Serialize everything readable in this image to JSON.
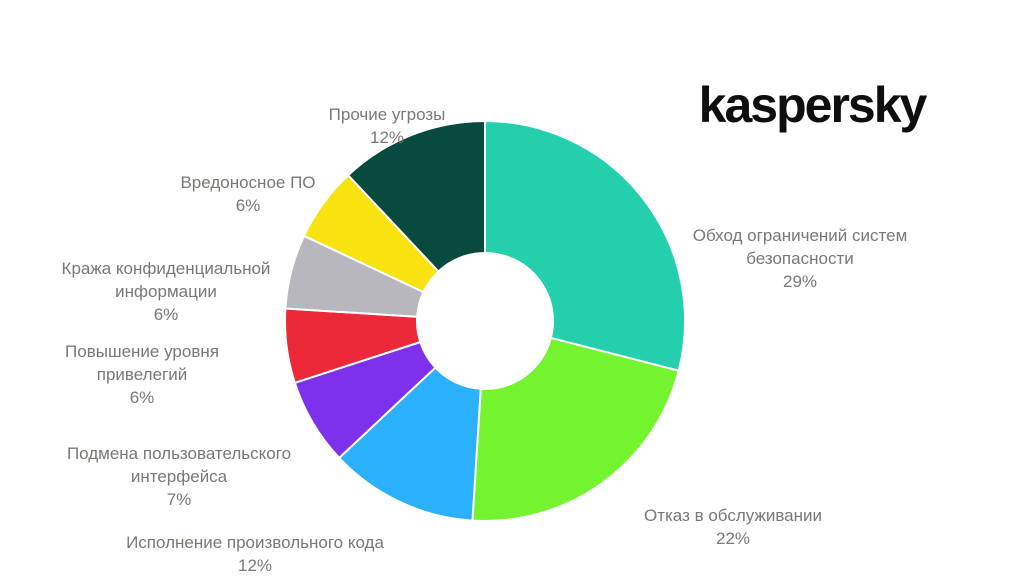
{
  "header": {
    "logo_text": "kaspersky"
  },
  "colors": {
    "background": "#ffffff",
    "label_text": "#7a7873",
    "logo": "#0e0e0e",
    "slice_gap": "#ffffff"
  },
  "chart_data": {
    "type": "pie",
    "style": "donut",
    "title": "",
    "legend_position": "none",
    "labels_outside": true,
    "start_angle_deg": 0,
    "direction": "clockwise",
    "inner_radius_ratio": 0.34,
    "unit": "%",
    "slices": [
      {
        "label": "Обход ограничений систем безопасности",
        "label_lines": "Обход ограничений систем\nбезопасности",
        "pct": "29%",
        "value": 29,
        "color": "#24CFAD"
      },
      {
        "label": "Отказ в обслуживании",
        "label_lines": "Отказ в обслуживании",
        "pct": "22%",
        "value": 22,
        "color": "#74F42F"
      },
      {
        "label": "Исполнение произвольного кода",
        "label_lines": "Исполнение произвольного кода",
        "pct": "12%",
        "value": 12,
        "color": "#2BB0FB"
      },
      {
        "label": "Подмена пользовательского интерфейса",
        "label_lines": "Подмена пользовательского\nинтерфейса",
        "pct": "7%",
        "value": 7,
        "color": "#7E31EC"
      },
      {
        "label": "Повышение уровня привелегий",
        "label_lines": "Повышение уровня\nпривелегий",
        "pct": "6%",
        "value": 6,
        "color": "#ED2939"
      },
      {
        "label": "Кража конфиденциальной информации",
        "label_lines": "Кража конфиденциальной\nинформации",
        "pct": "6%",
        "value": 6,
        "color": "#B9B7BE"
      },
      {
        "label": "Вредоносное ПО",
        "label_lines": "Вредоносное ПО",
        "pct": "6%",
        "value": 6,
        "color": "#F8E20F"
      },
      {
        "label": "Прочие угрозы",
        "label_lines": "Прочие угрозы",
        "pct": "12%",
        "value": 12,
        "color": "#094A3E"
      }
    ]
  }
}
